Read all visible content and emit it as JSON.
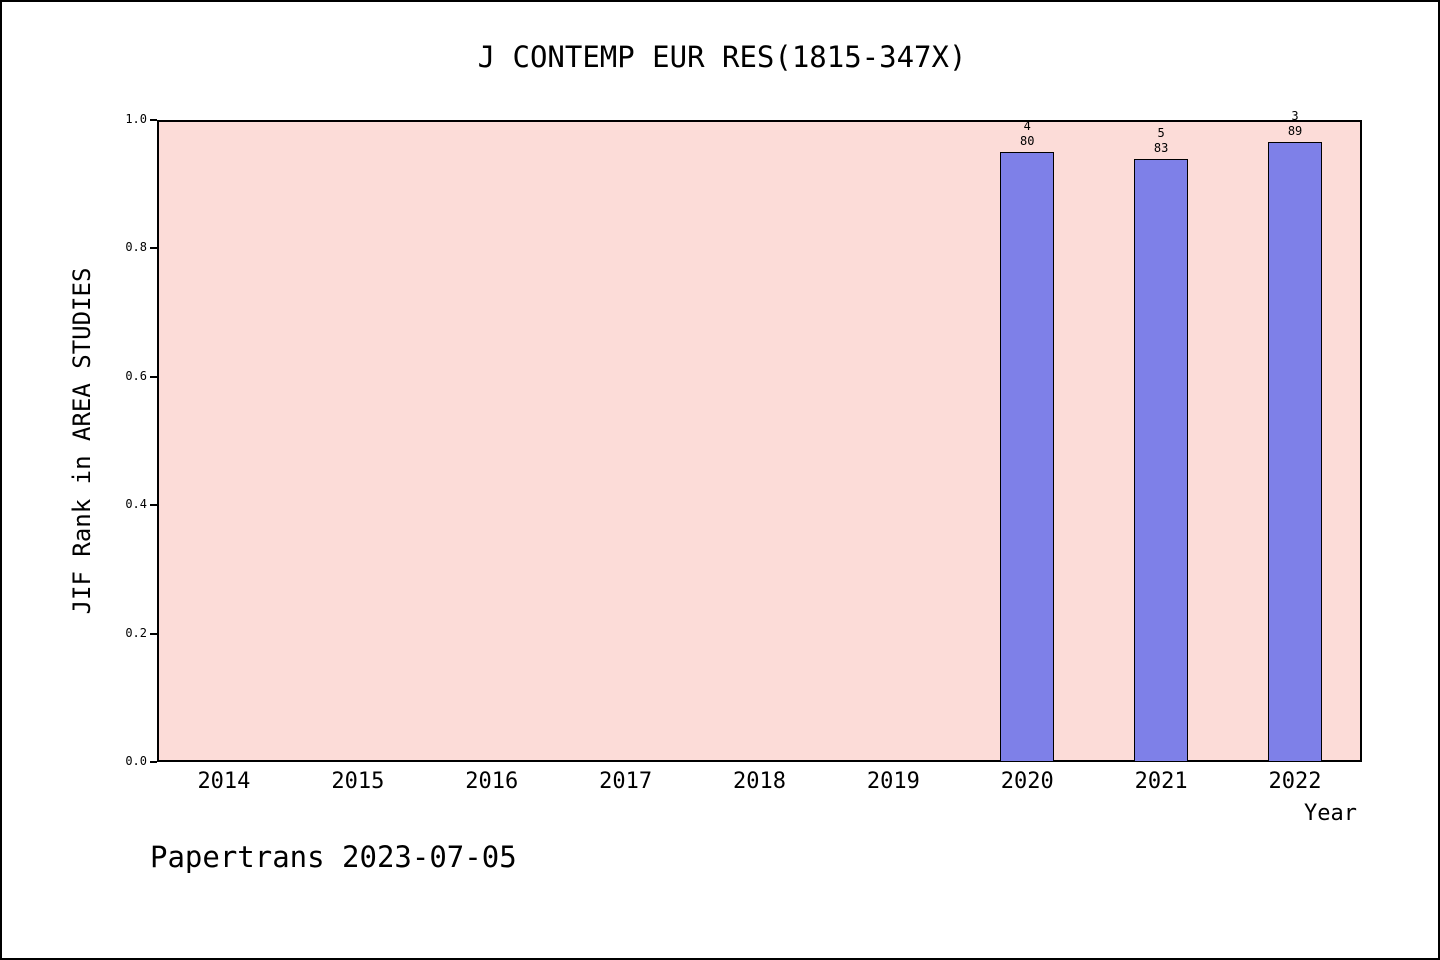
{
  "title": "J CONTEMP EUR RES(1815-347X)",
  "footer": "Papertrans 2023-07-05",
  "chart_data": {
    "type": "bar",
    "title": "J CONTEMP EUR RES(1815-347X)",
    "xlabel": "Year",
    "ylabel": "JIF Rank in AREA STUDIES",
    "categories": [
      "2014",
      "2015",
      "2016",
      "2017",
      "2018",
      "2019",
      "2020",
      "2021",
      "2022"
    ],
    "values": [
      null,
      null,
      null,
      null,
      null,
      null,
      0.95,
      0.9398,
      0.9663
    ],
    "bars": [
      {
        "year": "2020",
        "rank": "4",
        "total": "80",
        "value": 0.95
      },
      {
        "year": "2021",
        "rank": "5",
        "total": "83",
        "value": 0.9398
      },
      {
        "year": "2022",
        "rank": "3",
        "total": "89",
        "value": 0.9663
      }
    ],
    "ylim": [
      0.0,
      1.0
    ],
    "yticks": [
      "0.0",
      "0.2",
      "0.4",
      "0.6",
      "0.8",
      "1.0"
    ],
    "grid": false,
    "legend": "none",
    "colors": {
      "bar_fill": "#7e80e8",
      "bar_edge": "#000000",
      "plot_background": "#fcdcd8",
      "figure_background": "#ffffff",
      "text": "#000000"
    }
  }
}
